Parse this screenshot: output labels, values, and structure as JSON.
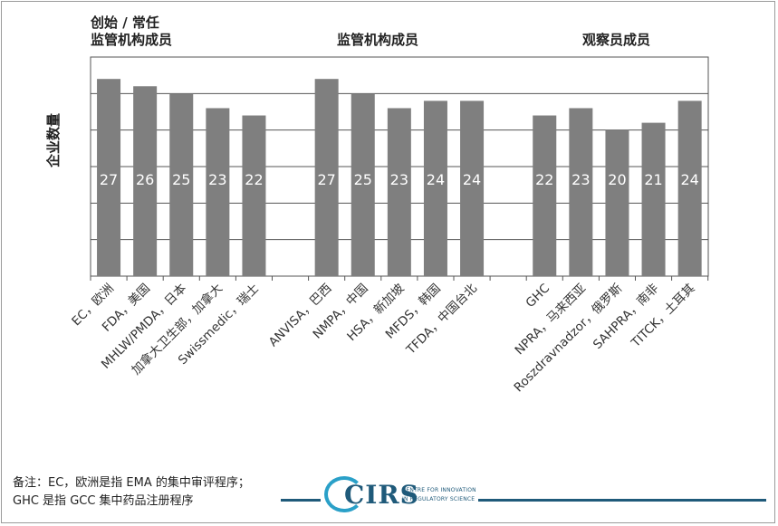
{
  "chart_data": {
    "type": "bar",
    "ylabel": "企业数量",
    "ylim": [
      0,
      30
    ],
    "grid": true,
    "groups": [
      {
        "title_line1": "创始 / 常任",
        "title_line2": "监管机构成员",
        "categories": [
          "EC，欧洲",
          "FDA，美国",
          "MHLW/PMDA，日本",
          "加拿大卫生部，加拿大",
          "Swissmedic，瑞士"
        ],
        "values": [
          27,
          26,
          25,
          23,
          22
        ]
      },
      {
        "title_line1": "",
        "title_line2": "监管机构成员",
        "categories": [
          "ANVISA，巴西",
          "NMPA，中国",
          "HSA，新加坡",
          "MFDS，韩国",
          "TFDA，中国台北"
        ],
        "values": [
          27,
          25,
          23,
          24,
          24
        ]
      },
      {
        "title_line1": "",
        "title_line2": "观察员成员",
        "categories": [
          "GHC",
          "NPRA，马来西亚",
          "Roszdravnadzor，俄罗斯",
          "SAHPRA，南非",
          "TITCK，土耳其"
        ],
        "values": [
          22,
          23,
          20,
          21,
          24
        ]
      }
    ],
    "bar_color": "#7f7f7f",
    "label_color": "#ffffff"
  },
  "note": {
    "line1": "备注：EC，欧洲是指 EMA 的集中审评程序；",
    "line2": "GHC 是指 GCC 集中药品注册程序"
  },
  "logo": {
    "text": "CIRS",
    "sub1": "CENTRE FOR INNOVATION",
    "sub2": "IN REGULATORY SCIENCE"
  },
  "colors": {
    "accent": "#1f5a7a",
    "logo_ring": "#2aa0c8"
  }
}
